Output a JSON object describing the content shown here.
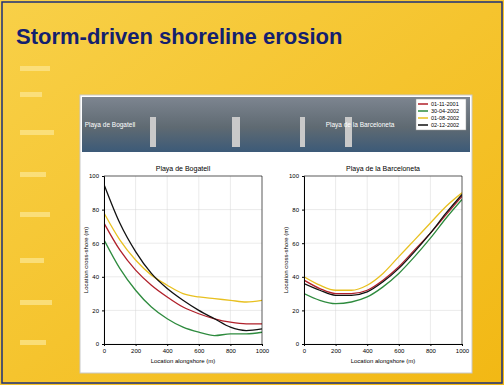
{
  "slide": {
    "title": "Storm-driven shoreline erosion"
  },
  "photo": {
    "labels": [
      "Playa de Bogatell",
      "Playa de la Barceloneta"
    ]
  },
  "chart_data": [
    {
      "type": "line",
      "title": "Playa de Bogatell",
      "x_label": "Location alongshore (m)",
      "y_label": "Location cross-shore (m)",
      "x": [
        0,
        100,
        200,
        300,
        400,
        500,
        600,
        700,
        800,
        900,
        1000
      ],
      "xlim": [
        0,
        1000
      ],
      "xticks": [
        0,
        200,
        400,
        600,
        800,
        1000
      ],
      "ylim": [
        0,
        100
      ],
      "yticks": [
        0,
        20,
        40,
        60,
        80,
        100
      ],
      "grid": true,
      "series": [
        {
          "name": "01-11-2001",
          "color": "#b0202a",
          "values": [
            72,
            56,
            44,
            35,
            28,
            22,
            18,
            15,
            13,
            12,
            12
          ]
        },
        {
          "name": "30-04-2002",
          "color": "#2e8b3e",
          "values": [
            62,
            45,
            32,
            22,
            15,
            10,
            7,
            5,
            6,
            6,
            7
          ]
        },
        {
          "name": "01-08-2002",
          "color": "#e8c020",
          "values": [
            78,
            62,
            50,
            41,
            35,
            30,
            28,
            27,
            26,
            25,
            26
          ]
        },
        {
          "name": "02-12-2002",
          "color": "#111111",
          "values": [
            95,
            72,
            55,
            42,
            33,
            26,
            20,
            15,
            10,
            8,
            9
          ]
        }
      ]
    },
    {
      "type": "line",
      "title": "Playa de la Barceloneta",
      "x_label": "Location alongshore (m)",
      "y_label": "Location cross-shore (m)",
      "x": [
        0,
        100,
        200,
        300,
        400,
        500,
        600,
        700,
        800,
        900,
        1000
      ],
      "xlim": [
        0,
        1000
      ],
      "xticks": [
        0,
        200,
        400,
        600,
        800,
        1000
      ],
      "ylim": [
        0,
        100
      ],
      "yticks": [
        0,
        20,
        40,
        60,
        80,
        100
      ],
      "grid": true,
      "series": [
        {
          "color": "#b0202a",
          "values": [
            38,
            33,
            30,
            30,
            32,
            38,
            46,
            56,
            66,
            77,
            88
          ]
        },
        {
          "color": "#2e8b3e",
          "values": [
            30,
            26,
            24,
            25,
            28,
            34,
            42,
            52,
            63,
            75,
            86
          ]
        },
        {
          "color": "#e8c020",
          "values": [
            40,
            35,
            32,
            32,
            35,
            42,
            52,
            62,
            72,
            82,
            90
          ]
        },
        {
          "color": "#111111",
          "values": [
            36,
            32,
            29,
            29,
            31,
            37,
            45,
            55,
            66,
            78,
            89
          ]
        }
      ]
    }
  ]
}
